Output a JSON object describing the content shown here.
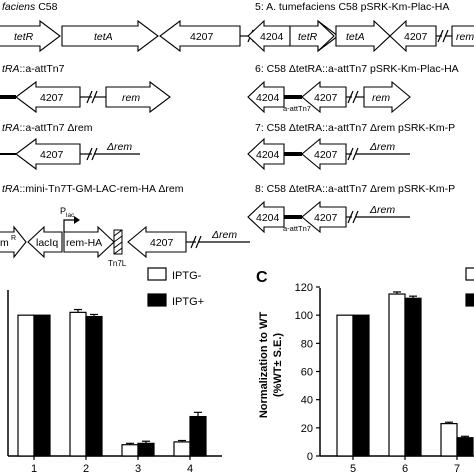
{
  "panelA": {
    "left_rows": [
      {
        "label_italic": "faciens",
        "label_rest": " C58",
        "genes": [
          "tetR",
          "tetA",
          "4207",
          "rem"
        ]
      },
      {
        "label_italic": "tRA",
        "label_rest": "::a-attTn7",
        "genes": [
          "4207",
          "rem"
        ]
      },
      {
        "label_italic": "tRA",
        "label_rest": "::a-attTn7 Δrem",
        "genes": [
          "4207",
          "Δrem"
        ]
      },
      {
        "label_italic": "tRA",
        "label_rest": "::mini-Tn7T-GM-LAC-rem-HA  Δrem",
        "genes": [
          "m",
          "R",
          "lacIq",
          "rem-HA",
          "4207",
          "Δrem",
          "Tn7L",
          "P",
          "lac"
        ]
      }
    ],
    "right_rows": [
      {
        "label": "5: A. tumefaciens C58 pSRK-Km-Plac-HA",
        "genes": [
          "4204",
          "tetR",
          "tetA",
          "4207",
          "rem"
        ]
      },
      {
        "label": "6: C58 ΔtetRA::a-attTn7 pSRK-Km-Plac-HA",
        "genes": [
          "4204",
          "a-attTn7",
          "4207",
          "rem"
        ]
      },
      {
        "label": "7: C58 ΔtetRA::a-attTn7 Δrem  pSRK-Km-P",
        "genes": [
          "4204",
          "4207",
          "Δrem"
        ]
      },
      {
        "label": "8: C58 ΔtetRA::a-attTn7 Δrem  pSRK-Km-P",
        "genes": [
          "4204",
          "a-attTn7",
          "4207",
          "Δrem"
        ]
      }
    ]
  },
  "panelB": {
    "legend": [
      "IPTG-",
      "IPTG+"
    ],
    "colors": {
      "minus": "#ffffff",
      "plus": "#000000"
    }
  },
  "panelC": {
    "letter": "C",
    "ylabel_line1": "Normalization to WT",
    "ylabel_line2": "(%WT± S.E.)"
  },
  "chart_data": [
    {
      "type": "bar",
      "categories": [
        "1",
        "2",
        "3",
        "4"
      ],
      "series": [
        {
          "name": "IPTG-",
          "values": [
            100,
            102,
            8,
            10
          ],
          "errors": [
            0,
            2,
            1,
            1
          ]
        },
        {
          "name": "IPTG+",
          "values": [
            100,
            99,
            9,
            28
          ],
          "errors": [
            0,
            1.5,
            1.5,
            3
          ]
        }
      ],
      "ylim": [
        0,
        120
      ],
      "legend": "top-right"
    },
    {
      "type": "bar",
      "categories": [
        "5",
        "6",
        "7"
      ],
      "series": [
        {
          "name": "",
          "values": [
            100,
            115,
            23
          ],
          "errors": [
            0,
            1.5,
            1
          ]
        },
        {
          "name": "",
          "values": [
            100,
            112,
            13
          ],
          "errors": [
            0,
            1.5,
            1
          ]
        }
      ],
      "ylabel": "Normalization to WT (%WT± S.E.)",
      "yticks": [
        0,
        20,
        40,
        60,
        80,
        100,
        120
      ],
      "ylim": [
        0,
        120
      ]
    }
  ]
}
